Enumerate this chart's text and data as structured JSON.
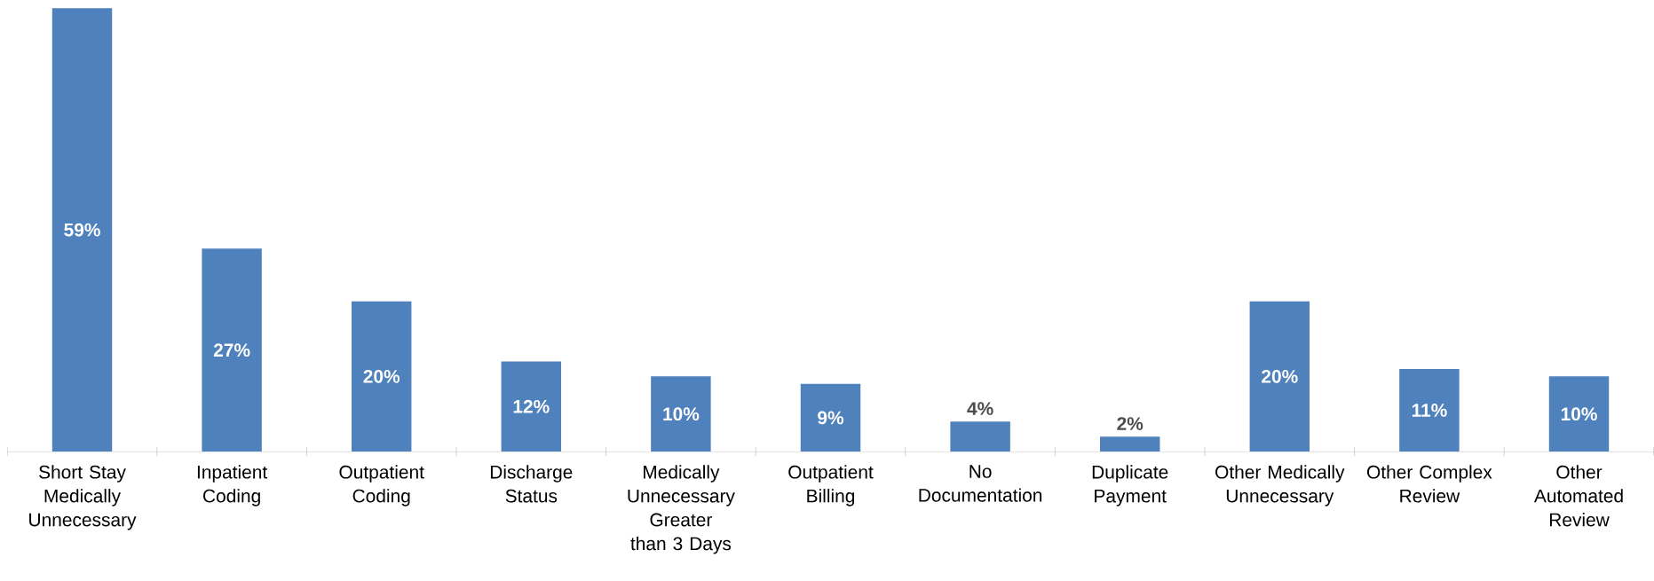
{
  "chart_data": {
    "type": "bar",
    "categories": [
      "Short Stay Medically Unnecessary",
      "Inpatient Coding",
      "Outpatient Coding",
      "Discharge Status",
      "Medically Unnecessary Greater than 3 Days",
      "Outpatient Billing",
      "No Documentation",
      "Duplicate Payment",
      "Other Medically Unnecessary",
      "Other Complex Review",
      "Other Automated Review"
    ],
    "values": [
      59,
      27,
      20,
      12,
      10,
      9,
      4,
      2,
      20,
      11,
      10
    ],
    "value_labels": [
      "59%",
      "27%",
      "20%",
      "12%",
      "10%",
      "9%",
      "4%",
      "2%",
      "20%",
      "11%",
      "10%"
    ],
    "color": "#4f81bd"
  }
}
